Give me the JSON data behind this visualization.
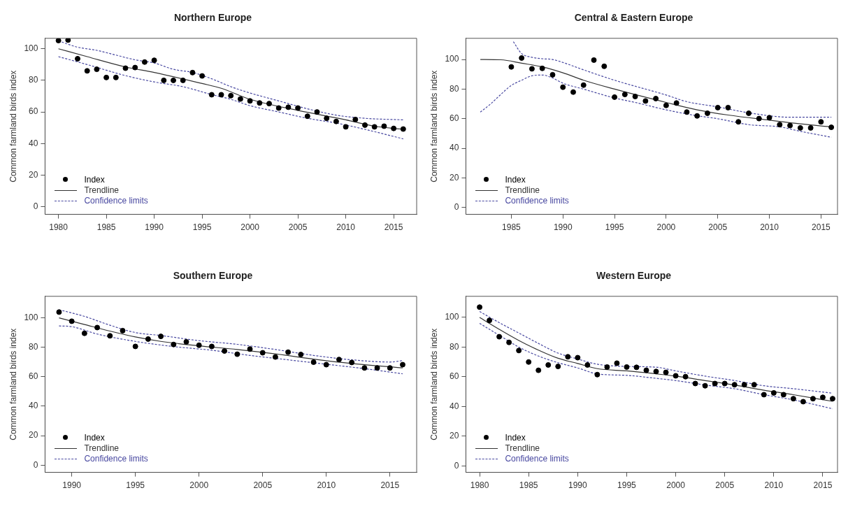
{
  "chart_data": [
    {
      "type": "scatter",
      "title": "Northern Europe",
      "ylabel": "Common farmland birds index",
      "xlim": [
        1978.6,
        2017.4
      ],
      "xticks": [
        1980,
        1985,
        1990,
        1995,
        2000,
        2005,
        2010,
        2015
      ],
      "ylim": [
        -4.8,
        106.6
      ],
      "yticks": [
        0,
        20,
        40,
        60,
        80,
        100
      ],
      "legend": "bottom left",
      "grid": false,
      "series": [
        {
          "name": "Index",
          "marker": "circle",
          "color": "#000000",
          "x": [
            1980,
            1981,
            1982,
            1983,
            1984,
            1985,
            1986,
            1987,
            1988,
            1989,
            1990,
            1991,
            1992,
            1993,
            1994,
            1995,
            1996,
            1997,
            1998,
            1999,
            2000,
            2001,
            2002,
            2003,
            2004,
            2005,
            2006,
            2007,
            2008,
            2009,
            2010,
            2011,
            2012,
            2013,
            2014,
            2015,
            2016
          ],
          "values": [
            105.2,
            105.5,
            93.7,
            86,
            87,
            81.8,
            81.8,
            87.7,
            88.1,
            91.6,
            92.7,
            80,
            80,
            80,
            84.9,
            82.8,
            70.9,
            70.9,
            70.3,
            68.2,
            67,
            65.7,
            65.3,
            62.5,
            63,
            62.5,
            57.3,
            60,
            56,
            54,
            50.6,
            55.2,
            51.7,
            50.6,
            51,
            49.6,
            49.2
          ]
        },
        {
          "name": "Trendline",
          "type": "line",
          "color": "#333333",
          "line_style": "solid",
          "x": [
            1980,
            1983,
            1987,
            1990,
            1995,
            1997,
            2000,
            2005,
            2010,
            2013,
            2016
          ],
          "values": [
            100,
            95,
            88.5,
            85,
            78,
            75,
            68,
            61,
            55,
            51,
            49
          ]
        },
        {
          "name": "Confidence limits",
          "type": "line",
          "color": "#4848a0",
          "line_style": "dashed",
          "x": [
            1980,
            1982,
            1984,
            1986,
            1988,
            1990,
            1992,
            1994,
            1996,
            1998,
            2000,
            2003,
            2006,
            2009,
            2012,
            2016
          ],
          "values": [
            105,
            101,
            99,
            96,
            93,
            91,
            87,
            85,
            81,
            76,
            72,
            67,
            62,
            58,
            56,
            55
          ]
        },
        {
          "type": "line",
          "color": "#4848a0",
          "line_style": "dashed",
          "x": [
            1980,
            1983,
            1987,
            1990,
            1993,
            1996,
            1998,
            2000,
            2003,
            2006,
            2009,
            2012,
            2016
          ],
          "values": [
            95,
            90,
            83,
            79,
            76,
            71,
            68,
            64,
            60,
            56,
            53,
            49,
            43
          ]
        }
      ]
    },
    {
      "type": "scatter",
      "title": "Central & Eastern Europe",
      "ylabel": "Common farmland birds index",
      "xlim": [
        1980.6,
        2016.6
      ],
      "xticks": [
        1985,
        1990,
        1995,
        2000,
        2005,
        2010,
        2015
      ],
      "ylim": [
        -4.6,
        114.3
      ],
      "yticks": [
        0,
        20,
        40,
        60,
        80,
        100
      ],
      "legend": "bottom left",
      "grid": false,
      "series": [
        {
          "name": "Index",
          "marker": "circle",
          "color": "#000000",
          "x": [
            1985,
            1986,
            1987,
            1988,
            1989,
            1990,
            1991,
            1992,
            1993,
            1994,
            1995,
            1996,
            1997,
            1998,
            1999,
            2000,
            2001,
            2002,
            2003,
            2004,
            2005,
            2006,
            2007,
            2008,
            2009,
            2010,
            2011,
            2012,
            2013,
            2014,
            2015,
            2016
          ],
          "values": [
            95,
            101,
            93.7,
            94,
            89.7,
            81.3,
            78,
            82.7,
            99.6,
            95.4,
            74.6,
            76.4,
            75,
            72,
            73.6,
            69,
            70.6,
            64.5,
            61.9,
            63.7,
            67.5,
            67.5,
            57.9,
            63.7,
            60.1,
            60.7,
            56,
            55.4,
            53.8,
            53.8,
            57.9,
            54.2
          ]
        },
        {
          "name": "Trendline",
          "type": "line",
          "color": "#333333",
          "line_style": "solid",
          "x": [
            1982,
            1984,
            1986,
            1988,
            1990,
            1992,
            1995,
            2000,
            2003,
            2006,
            2010,
            2013,
            2016
          ],
          "values": [
            100,
            99.8,
            97.5,
            95,
            91,
            86,
            80,
            71,
            66,
            62.5,
            59,
            56.5,
            54.5
          ]
        },
        {
          "name": "Confidence limits",
          "type": "line",
          "color": "#4848a0",
          "line_style": "dashed",
          "x": [
            1985.2,
            1986,
            1987,
            1988,
            1989,
            1990,
            1992,
            1995,
            2000,
            2002,
            2005,
            2008,
            2012,
            2016
          ],
          "values": [
            112,
            104,
            101.5,
            100.5,
            100,
            98,
            93,
            86,
            76,
            71.5,
            68,
            64,
            61,
            61
          ]
        },
        {
          "type": "line",
          "color": "#4848a0",
          "line_style": "dashed",
          "x": [
            1982,
            1983,
            1984,
            1985,
            1986,
            1987,
            1988,
            1989,
            1990,
            1992,
            1995,
            1997,
            2000,
            2003,
            2005,
            2008,
            2011,
            2013,
            2016
          ],
          "values": [
            64.5,
            70,
            76.5,
            82.5,
            86,
            89,
            89.5,
            87.5,
            84,
            80,
            74,
            71,
            66,
            62,
            60,
            56,
            54.5,
            51.5,
            47.5
          ]
        }
      ]
    },
    {
      "type": "scatter",
      "title": "Southern Europe",
      "ylabel": "Common farmland birds index",
      "xlim": [
        1987.9,
        2017.1
      ],
      "xticks": [
        1990,
        1995,
        2000,
        2005,
        2010,
        2015
      ],
      "ylim": [
        -4.9,
        114.6
      ],
      "yticks": [
        0,
        20,
        40,
        60,
        80,
        100
      ],
      "legend": "bottom left",
      "grid": false,
      "series": [
        {
          "name": "Index",
          "marker": "circle",
          "color": "#000000",
          "x": [
            1989,
            1990,
            1991,
            1992,
            1993,
            1994,
            1995,
            1996,
            1997,
            1998,
            1999,
            2000,
            2001,
            2002,
            2003,
            2004,
            2005,
            2006,
            2007,
            2008,
            2009,
            2010,
            2011,
            2012,
            2013,
            2014,
            2015,
            2016
          ],
          "values": [
            103.9,
            97.7,
            89.5,
            93.4,
            87.8,
            91.3,
            80.6,
            85.6,
            87.4,
            81.9,
            83.7,
            81.4,
            80.6,
            77.5,
            75.3,
            78.8,
            76.3,
            73.4,
            76.7,
            75.1,
            69.9,
            68.2,
            71.7,
            69.7,
            66,
            66,
            66,
            68.2
          ]
        },
        {
          "name": "Trendline",
          "type": "line",
          "color": "#333333",
          "line_style": "solid",
          "x": [
            1989,
            1991,
            1993,
            1995,
            1997,
            2000,
            2003,
            2006,
            2009,
            2012,
            2016
          ],
          "values": [
            100,
            95.5,
            91,
            87,
            84,
            81,
            78.5,
            75.5,
            72,
            69,
            66
          ]
        },
        {
          "name": "Confidence limits",
          "type": "line",
          "color": "#4848a0",
          "line_style": "dashed",
          "x": [
            1989,
            1991,
            1993,
            1995,
            1997,
            2000,
            2003,
            2006,
            2009,
            2012,
            2015,
            2016
          ],
          "values": [
            105.5,
            101,
            95,
            90,
            88,
            84.5,
            82,
            78.5,
            74.5,
            71.5,
            70,
            71
          ]
        },
        {
          "type": "line",
          "color": "#4848a0",
          "line_style": "dashed",
          "x": [
            1989,
            1990,
            1992,
            1995,
            1998,
            2001,
            2004,
            2007,
            2010,
            2013,
            2016
          ],
          "values": [
            94.5,
            94,
            89,
            84,
            80.5,
            78,
            74.5,
            71.5,
            68.5,
            65.5,
            62
          ]
        }
      ]
    },
    {
      "type": "scatter",
      "title": "Western Europe",
      "ylabel": "Common farmland birds index",
      "xlim": [
        1978.6,
        2016.5
      ],
      "xticks": [
        1980,
        1985,
        1990,
        1995,
        2000,
        2005,
        2010,
        2015
      ],
      "ylim": [
        -4.3,
        114.2
      ],
      "yticks": [
        0,
        20,
        40,
        60,
        80,
        100
      ],
      "legend": "bottom left",
      "grid": false,
      "series": [
        {
          "name": "Index",
          "marker": "circle",
          "color": "#000000",
          "x": [
            1980,
            1981,
            1982,
            1983,
            1984,
            1985,
            1986,
            1987,
            1988,
            1989,
            1990,
            1991,
            1992,
            1993,
            1994,
            1995,
            1996,
            1997,
            1998,
            1999,
            2000,
            2001,
            2002,
            2003,
            2004,
            2005,
            2006,
            2007,
            2008,
            2009,
            2010,
            2011,
            2012,
            2013,
            2014,
            2015,
            2016
          ],
          "values": [
            106.9,
            98,
            87,
            83.2,
            77.7,
            70,
            64.4,
            68,
            67,
            73.5,
            72.9,
            68,
            61.5,
            66.6,
            69.2,
            66.6,
            66.4,
            64.4,
            63.6,
            63,
            60.7,
            60.1,
            55.5,
            54,
            55.5,
            55.5,
            54.7,
            54.7,
            54.7,
            48,
            49.2,
            48,
            45.3,
            43.3,
            45.3,
            46.2,
            45.3
          ]
        },
        {
          "name": "Trendline",
          "type": "line",
          "color": "#333333",
          "line_style": "solid",
          "x": [
            1980,
            1982,
            1984,
            1986,
            1988,
            1990,
            1992,
            1995,
            1998,
            2000,
            2003,
            2006,
            2009,
            2012,
            2016
          ],
          "values": [
            100,
            92,
            84.5,
            78,
            72.5,
            69,
            65.5,
            64,
            62,
            60.5,
            57.5,
            54.5,
            51,
            48,
            43.5
          ]
        },
        {
          "name": "Confidence limits",
          "type": "line",
          "color": "#4848a0",
          "line_style": "dashed",
          "x": [
            1980,
            1982,
            1984,
            1986,
            1988,
            1990,
            1992,
            1995,
            1998,
            2000,
            2003,
            2006,
            2009,
            2012,
            2016
          ],
          "values": [
            104,
            96.5,
            89.5,
            82.5,
            76,
            72,
            68.5,
            67,
            66.5,
            64,
            60.5,
            57.5,
            54,
            52,
            49
          ]
        },
        {
          "type": "line",
          "color": "#4848a0",
          "line_style": "dashed",
          "x": [
            1980,
            1982,
            1984,
            1986,
            1988,
            1990,
            1992,
            1995,
            1998,
            2000,
            2003,
            2006,
            2009,
            2012,
            2016
          ],
          "values": [
            96,
            88,
            80,
            74,
            69.5,
            66,
            62,
            61,
            59,
            57.5,
            54.5,
            52,
            48,
            44.5,
            38.5
          ]
        }
      ]
    }
  ]
}
